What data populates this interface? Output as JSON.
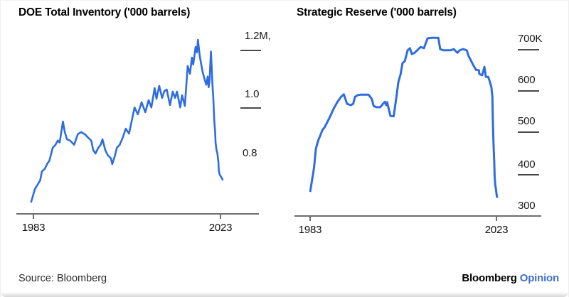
{
  "colors": {
    "line_blue": "#2E6CE0",
    "brand_blue": "#3E6FD0",
    "axis_gray": "#6E6E6E",
    "tick_dash_gray": "#4A4A4A"
  },
  "footer": {
    "source": "Source: Bloomberg",
    "brand_black": "Bloomberg",
    "brand_blue": "Opinion"
  },
  "chart_data": [
    {
      "type": "line",
      "title": "DOE Total Inventory ('000 barrels)",
      "unit": "'000 barrels, M = millions",
      "legend": "none",
      "grid": "off",
      "xlim": [
        1979.3,
        2031.4
      ],
      "ylim": [
        0.632,
        1.274
      ],
      "y_ticks": [
        {
          "label": "1.2M,",
          "value": 1.2,
          "dash": true
        },
        {
          "label": "1.0",
          "value": 1.0,
          "dash": true
        },
        {
          "label": "0.8",
          "value": 0.8,
          "dash": false
        }
      ],
      "x_ticks": [
        {
          "label": "1983",
          "year": 1983
        },
        {
          "label": "2023",
          "year": 2023
        }
      ],
      "points": [
        [
          1982.5,
          0.674
        ],
        [
          1983.3,
          0.719
        ],
        [
          1984.4,
          0.748
        ],
        [
          1984.8,
          0.78
        ],
        [
          1985.4,
          0.788
        ],
        [
          1985.9,
          0.805
        ],
        [
          1986.4,
          0.817
        ],
        [
          1987.1,
          0.862
        ],
        [
          1987.7,
          0.872
        ],
        [
          1988.2,
          0.887
        ],
        [
          1988.6,
          0.88
        ],
        [
          1989.3,
          0.953
        ],
        [
          1989.7,
          0.916
        ],
        [
          1990.2,
          0.891
        ],
        [
          1990.9,
          0.886
        ],
        [
          1991.7,
          0.872
        ],
        [
          1992.5,
          0.909
        ],
        [
          1993.2,
          0.916
        ],
        [
          1994.0,
          0.909
        ],
        [
          1994.6,
          0.899
        ],
        [
          1995.4,
          0.886
        ],
        [
          1995.8,
          0.854
        ],
        [
          1996.3,
          0.842
        ],
        [
          1996.9,
          0.862
        ],
        [
          1997.4,
          0.872
        ],
        [
          1997.8,
          0.891
        ],
        [
          1998.4,
          0.854
        ],
        [
          1998.9,
          0.837
        ],
        [
          1999.6,
          0.825
        ],
        [
          1999.9,
          0.805
        ],
        [
          2000.4,
          0.83
        ],
        [
          2000.9,
          0.862
        ],
        [
          2001.5,
          0.872
        ],
        [
          2002.2,
          0.899
        ],
        [
          2002.8,
          0.928
        ],
        [
          2003.5,
          0.911
        ],
        [
          2004.7,
          1.002
        ],
        [
          2005.4,
          0.978
        ],
        [
          2006.2,
          1.02
        ],
        [
          2007.0,
          0.985
        ],
        [
          2007.7,
          1.027
        ],
        [
          2008.3,
          1.002
        ],
        [
          2009.0,
          1.069
        ],
        [
          2009.4,
          1.032
        ],
        [
          2010.0,
          1.077
        ],
        [
          2010.6,
          1.035
        ],
        [
          2011.1,
          1.059
        ],
        [
          2011.6,
          1.064
        ],
        [
          2012.3,
          1.01
        ],
        [
          2012.9,
          1.057
        ],
        [
          2013.4,
          1.035
        ],
        [
          2013.8,
          1.057
        ],
        [
          2014.5,
          1.002
        ],
        [
          2014.9,
          1.044
        ],
        [
          2015.5,
          1.007
        ],
        [
          2016.1,
          1.146
        ],
        [
          2016.6,
          1.119
        ],
        [
          2017.0,
          1.175
        ],
        [
          2017.3,
          1.151
        ],
        [
          2017.8,
          1.212
        ],
        [
          2018.1,
          1.193
        ],
        [
          2018.3,
          1.237
        ],
        [
          2018.7,
          1.18
        ],
        [
          2019.3,
          1.126
        ],
        [
          2019.8,
          1.096
        ],
        [
          2020.1,
          1.081
        ],
        [
          2020.4,
          1.109
        ],
        [
          2020.6,
          1.072
        ],
        [
          2020.8,
          1.094
        ],
        [
          2021.0,
          1.163
        ],
        [
          2021.1,
          1.196
        ],
        [
          2021.3,
          1.126
        ],
        [
          2021.4,
          1.089
        ],
        [
          2021.6,
          1.035
        ],
        [
          2021.8,
          0.958
        ],
        [
          2022.0,
          0.916
        ],
        [
          2022.1,
          0.879
        ],
        [
          2022.3,
          0.854
        ],
        [
          2022.5,
          0.842
        ],
        [
          2022.7,
          0.81
        ],
        [
          2022.8,
          0.78
        ],
        [
          2023.0,
          0.768
        ],
        [
          2023.3,
          0.76
        ],
        [
          2023.6,
          0.751
        ]
      ]
    },
    {
      "type": "line",
      "title": "Strategic Reserve ('000 barrels)",
      "unit": "'000 barrels, K = thousands",
      "legend": "none",
      "grid": "off",
      "xlim": [
        1979.6,
        2032.6
      ],
      "ylim": [
        298,
        748
      ],
      "y_ticks": [
        {
          "label": "700K",
          "value": 700,
          "dash": true
        },
        {
          "label": "600",
          "value": 600,
          "dash": true
        },
        {
          "label": "500",
          "value": 500,
          "dash": true
        },
        {
          "label": "400",
          "value": 400,
          "dash": true
        },
        {
          "label": "300",
          "value": 300,
          "dash": false
        }
      ],
      "x_ticks": [
        {
          "label": "1983",
          "year": 1983
        },
        {
          "label": "2023",
          "year": 2023
        }
      ],
      "points": [
        [
          1983.0,
          358
        ],
        [
          1983.8,
          414
        ],
        [
          1984.2,
          460
        ],
        [
          1984.8,
          483
        ],
        [
          1985.0,
          488
        ],
        [
          1985.6,
          505
        ],
        [
          1986.1,
          512
        ],
        [
          1987.1,
          534
        ],
        [
          1988.0,
          556
        ],
        [
          1988.8,
          572
        ],
        [
          1989.6,
          585
        ],
        [
          1990.2,
          591
        ],
        [
          1990.9,
          568
        ],
        [
          1991.7,
          565
        ],
        [
          1992.2,
          568
        ],
        [
          1992.6,
          585
        ],
        [
          1993.2,
          589
        ],
        [
          1993.7,
          590
        ],
        [
          1994.8,
          590
        ],
        [
          1995.5,
          590
        ],
        [
          1996.2,
          580
        ],
        [
          1996.6,
          563
        ],
        [
          1997.2,
          560
        ],
        [
          1998.0,
          560
        ],
        [
          1998.6,
          568
        ],
        [
          1999.0,
          573
        ],
        [
          1999.3,
          565
        ],
        [
          1999.5,
          572
        ],
        [
          2000.2,
          539
        ],
        [
          2000.9,
          538
        ],
        [
          2001.5,
          585
        ],
        [
          2001.9,
          620
        ],
        [
          2002.4,
          640
        ],
        [
          2002.8,
          666
        ],
        [
          2003.3,
          671
        ],
        [
          2003.9,
          697
        ],
        [
          2004.4,
          702
        ],
        [
          2004.8,
          688
        ],
        [
          2005.4,
          691
        ],
        [
          2006.7,
          705
        ],
        [
          2007.4,
          702
        ],
        [
          2008.2,
          726
        ],
        [
          2009.0,
          727
        ],
        [
          2010.5,
          727
        ],
        [
          2010.9,
          700
        ],
        [
          2011.6,
          697
        ],
        [
          2013.1,
          697
        ],
        [
          2013.8,
          700
        ],
        [
          2014.6,
          691
        ],
        [
          2015.1,
          697
        ],
        [
          2015.8,
          700
        ],
        [
          2016.6,
          697
        ],
        [
          2017.0,
          683
        ],
        [
          2017.7,
          668
        ],
        [
          2018.1,
          659
        ],
        [
          2018.6,
          650
        ],
        [
          2019.2,
          649
        ],
        [
          2019.3,
          640
        ],
        [
          2019.9,
          637
        ],
        [
          2020.4,
          657
        ],
        [
          2020.7,
          633
        ],
        [
          2021.2,
          633
        ],
        [
          2021.6,
          620
        ],
        [
          2021.9,
          608
        ],
        [
          2022.1,
          585
        ],
        [
          2022.2,
          529
        ],
        [
          2022.35,
          471
        ],
        [
          2022.5,
          427
        ],
        [
          2022.6,
          392
        ],
        [
          2022.7,
          375
        ],
        [
          2022.8,
          368
        ],
        [
          2022.9,
          360
        ],
        [
          2023.0,
          351
        ],
        [
          2023.1,
          344
        ]
      ]
    }
  ]
}
